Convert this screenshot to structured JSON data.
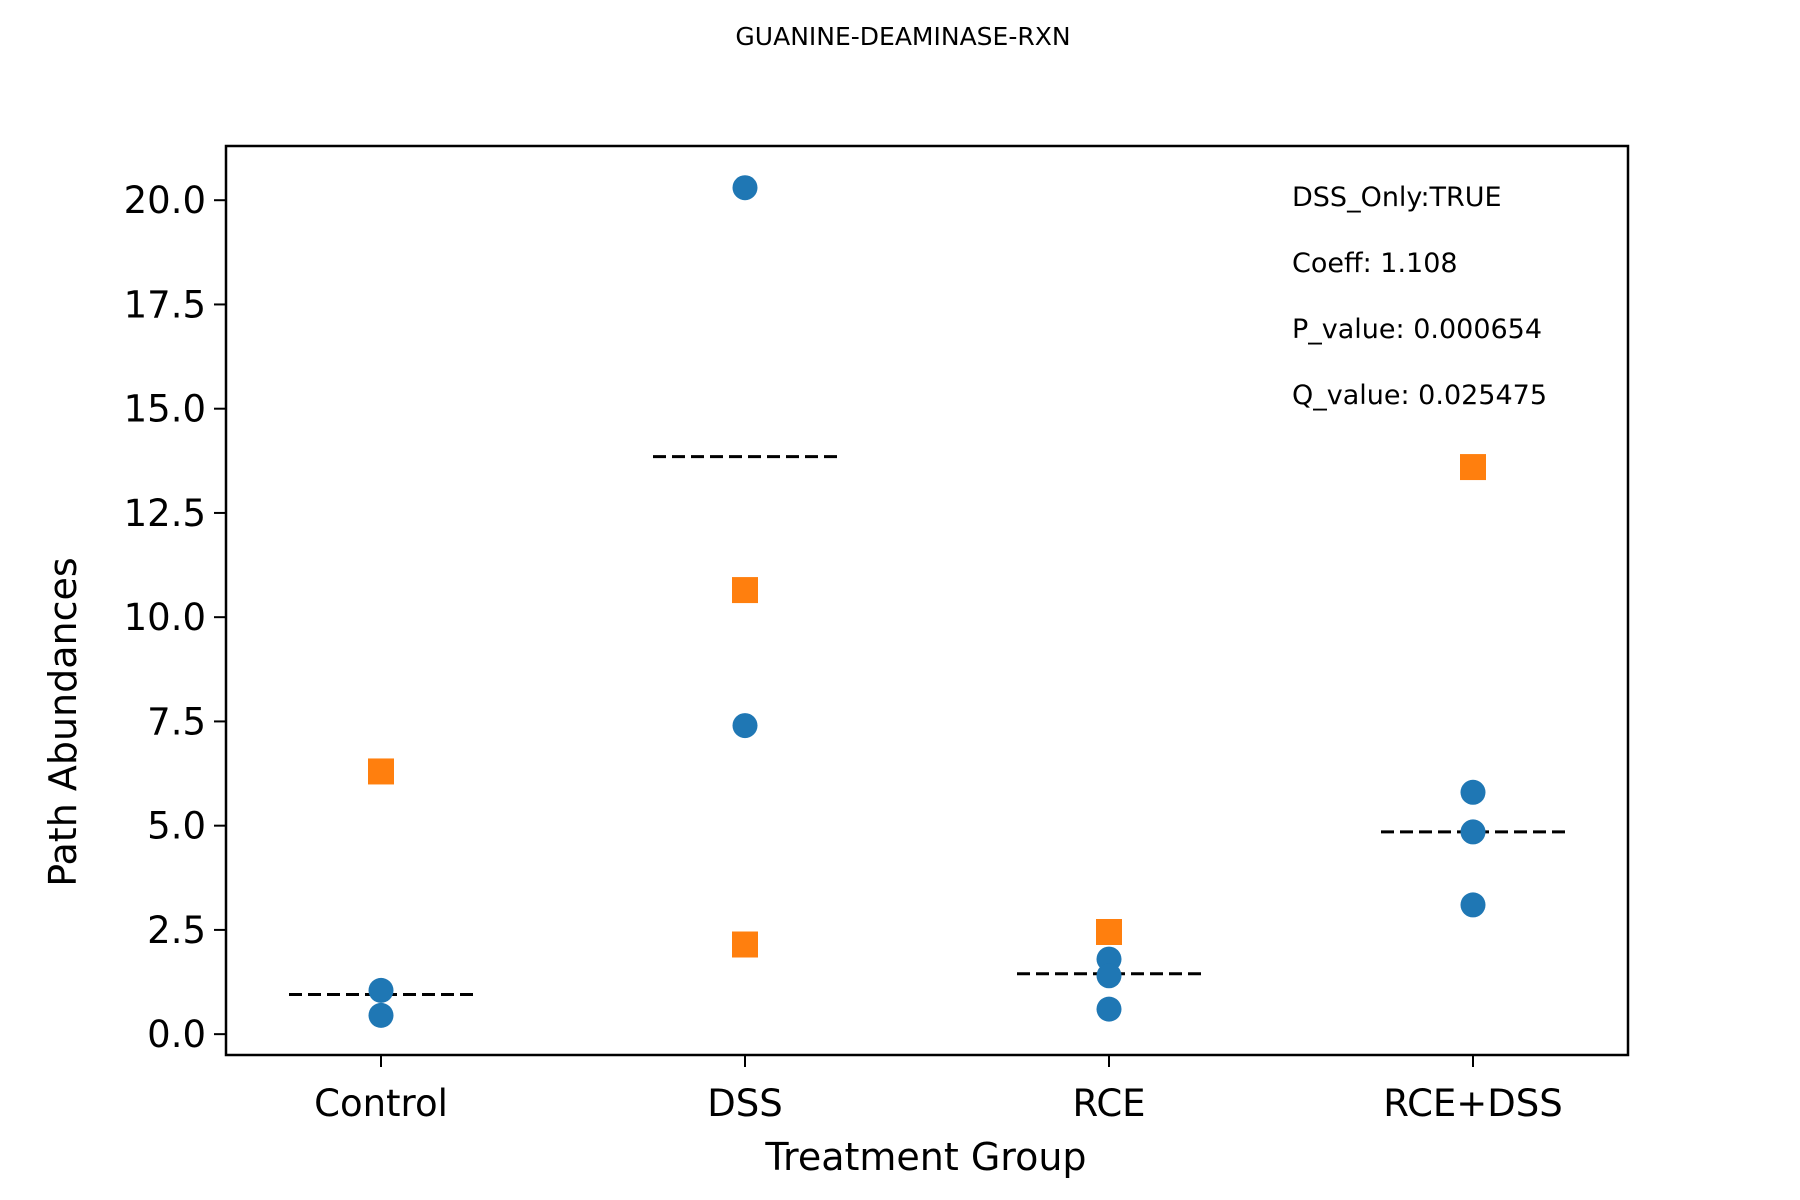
{
  "chart_data": {
    "type": "scatter",
    "title": "GUANINE-DEAMINASE-RXN",
    "xlabel": "Treatment Group",
    "ylabel": "Path Abundances",
    "categories": [
      "Control",
      "DSS",
      "RCE",
      "RCE+DSS"
    ],
    "ylim": [
      -0.5,
      21.3
    ],
    "yticks": [
      "0.0",
      "2.5",
      "5.0",
      "7.5",
      "10.0",
      "12.5",
      "15.0",
      "17.5",
      "20.0"
    ],
    "grid": false,
    "series": [
      {
        "marker": "circle",
        "color": "#1f77b4",
        "points": [
          {
            "category": "Control",
            "value": 1.05
          },
          {
            "category": "Control",
            "value": 0.45
          },
          {
            "category": "DSS",
            "value": 20.3
          },
          {
            "category": "DSS",
            "value": 7.4
          },
          {
            "category": "RCE",
            "value": 1.8
          },
          {
            "category": "RCE",
            "value": 1.4
          },
          {
            "category": "RCE",
            "value": 0.6
          },
          {
            "category": "RCE+DSS",
            "value": 5.8
          },
          {
            "category": "RCE+DSS",
            "value": 4.85
          },
          {
            "category": "RCE+DSS",
            "value": 3.1
          }
        ]
      },
      {
        "marker": "square",
        "color": "#ff7f0e",
        "points": [
          {
            "category": "Control",
            "value": 6.3
          },
          {
            "category": "DSS",
            "value": 10.65
          },
          {
            "category": "DSS",
            "value": 2.15
          },
          {
            "category": "RCE",
            "value": 2.45
          },
          {
            "category": "RCE+DSS",
            "value": 13.6
          }
        ]
      }
    ],
    "mean_lines": [
      {
        "category": "Control",
        "value": 0.95
      },
      {
        "category": "DSS",
        "value": 13.85
      },
      {
        "category": "RCE",
        "value": 1.45
      },
      {
        "category": "RCE+DSS",
        "value": 4.85
      }
    ],
    "annotations": [
      "DSS_Only:TRUE",
      "Coeff: 1.108",
      "P_value: 0.000654",
      "Q_value: 0.025475"
    ]
  }
}
